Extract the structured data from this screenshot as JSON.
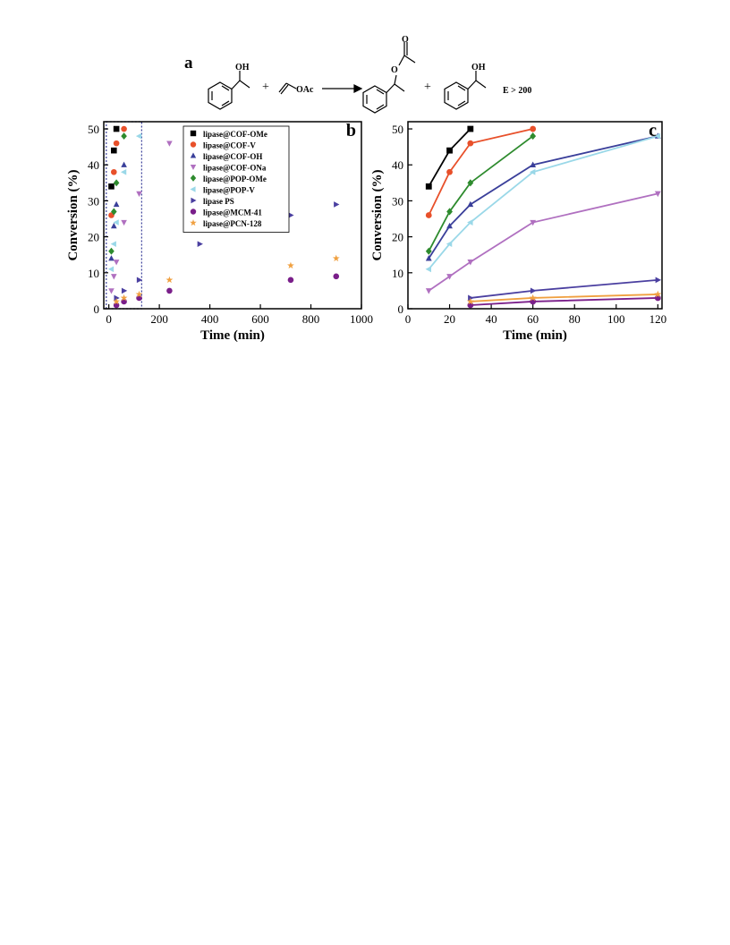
{
  "panel_a": {
    "label": "a",
    "reactant_oh": "OH",
    "plus1": "+",
    "vinyl_group": "OAc",
    "ester_o": "O",
    "ester_carbonyl_o": "O",
    "plus2": "+",
    "product_oh": "OH",
    "selectivity": "E > 200"
  },
  "series_styles": [
    {
      "name": "lipase@COF-OMe",
      "color": "#000000",
      "marker": "square"
    },
    {
      "name": "lipase@COF-V",
      "color": "#E8502A",
      "marker": "circle"
    },
    {
      "name": "lipase@COF-OH",
      "color": "#3A3F9A",
      "marker": "triangle-up"
    },
    {
      "name": "lipase@COF-ONa",
      "color": "#B070C0",
      "marker": "triangle-down"
    },
    {
      "name": "lipase@POP-OMe",
      "color": "#2E8B2E",
      "marker": "diamond"
    },
    {
      "name": "lipase@POP-V",
      "color": "#9AD8E8",
      "marker": "triangle-left"
    },
    {
      "name": "lipase PS",
      "color": "#4A3FA0",
      "marker": "triangle-right"
    },
    {
      "name": "lipase@MCM-41",
      "color": "#7A1F8A",
      "marker": "circle"
    },
    {
      "name": "lipase@PCN-128",
      "color": "#F0A040",
      "marker": "star"
    }
  ],
  "chart_data": [
    {
      "type": "scatter",
      "panel_label": "b",
      "xlabel": "Time (min)",
      "ylabel": "Conversion (%)",
      "xlim": [
        -20,
        1000
      ],
      "ylim": [
        0,
        52
      ],
      "xticks": [
        0,
        200,
        400,
        600,
        800,
        1000
      ],
      "yticks": [
        0,
        10,
        20,
        30,
        40,
        50
      ],
      "legend": "top-left",
      "highlight_box": {
        "x": [
          -10,
          130
        ],
        "y": [
          0,
          52
        ],
        "style": "dotted"
      },
      "series": [
        {
          "name": "lipase@COF-OMe",
          "x": [
            10,
            20,
            30
          ],
          "y": [
            34,
            44,
            50
          ]
        },
        {
          "name": "lipase@COF-V",
          "x": [
            10,
            20,
            30,
            60
          ],
          "y": [
            26,
            38,
            46,
            50
          ]
        },
        {
          "name": "lipase@COF-OH",
          "x": [
            10,
            20,
            30,
            60
          ],
          "y": [
            14,
            23,
            29,
            40
          ]
        },
        {
          "name": "lipase@COF-ONa",
          "x": [
            10,
            20,
            30,
            60,
            120,
            240
          ],
          "y": [
            5,
            9,
            13,
            24,
            32,
            46
          ]
        },
        {
          "name": "lipase@POP-OMe",
          "x": [
            10,
            20,
            30,
            60
          ],
          "y": [
            16,
            27,
            35,
            48
          ]
        },
        {
          "name": "lipase@POP-V",
          "x": [
            10,
            20,
            30,
            60,
            120
          ],
          "y": [
            11,
            18,
            24,
            38,
            48
          ]
        },
        {
          "name": "lipase PS",
          "x": [
            30,
            60,
            120,
            360,
            720,
            900
          ],
          "y": [
            3,
            5,
            8,
            18,
            26,
            29
          ]
        },
        {
          "name": "lipase@MCM-41",
          "x": [
            30,
            60,
            120,
            240,
            720,
            900
          ],
          "y": [
            1,
            2,
            3,
            5,
            8,
            9
          ]
        },
        {
          "name": "lipase@PCN-128",
          "x": [
            30,
            60,
            120,
            240,
            720,
            900
          ],
          "y": [
            2,
            3,
            4,
            8,
            12,
            14
          ]
        }
      ]
    },
    {
      "type": "line",
      "panel_label": "c",
      "xlabel": "Time (min)",
      "ylabel": "Conversion (%)",
      "xlim": [
        0,
        122
      ],
      "ylim": [
        0,
        52
      ],
      "xticks": [
        0,
        20,
        40,
        60,
        80,
        100,
        120
      ],
      "yticks": [
        0,
        10,
        20,
        30,
        40,
        50
      ],
      "series": [
        {
          "name": "lipase@COF-OMe",
          "x": [
            10,
            20,
            30
          ],
          "y": [
            34,
            44,
            50
          ]
        },
        {
          "name": "lipase@COF-V",
          "x": [
            10,
            20,
            30,
            60
          ],
          "y": [
            26,
            38,
            46,
            50
          ]
        },
        {
          "name": "lipase@COF-OH",
          "x": [
            10,
            20,
            30,
            60,
            120
          ],
          "y": [
            14,
            23,
            29,
            40,
            48
          ]
        },
        {
          "name": "lipase@COF-ONa",
          "x": [
            10,
            20,
            30,
            60,
            120
          ],
          "y": [
            5,
            9,
            13,
            24,
            32
          ]
        },
        {
          "name": "lipase@POP-OMe",
          "x": [
            10,
            20,
            30,
            60
          ],
          "y": [
            16,
            27,
            35,
            48
          ]
        },
        {
          "name": "lipase@POP-V",
          "x": [
            10,
            20,
            30,
            60,
            120
          ],
          "y": [
            11,
            18,
            24,
            38,
            48
          ]
        },
        {
          "name": "lipase PS",
          "x": [
            30,
            60,
            120
          ],
          "y": [
            3,
            5,
            8
          ]
        },
        {
          "name": "lipase@MCM-41",
          "x": [
            30,
            60,
            120
          ],
          "y": [
            1,
            2,
            3
          ]
        },
        {
          "name": "lipase@PCN-128",
          "x": [
            30,
            60,
            120
          ],
          "y": [
            2,
            3,
            4
          ]
        }
      ]
    }
  ]
}
